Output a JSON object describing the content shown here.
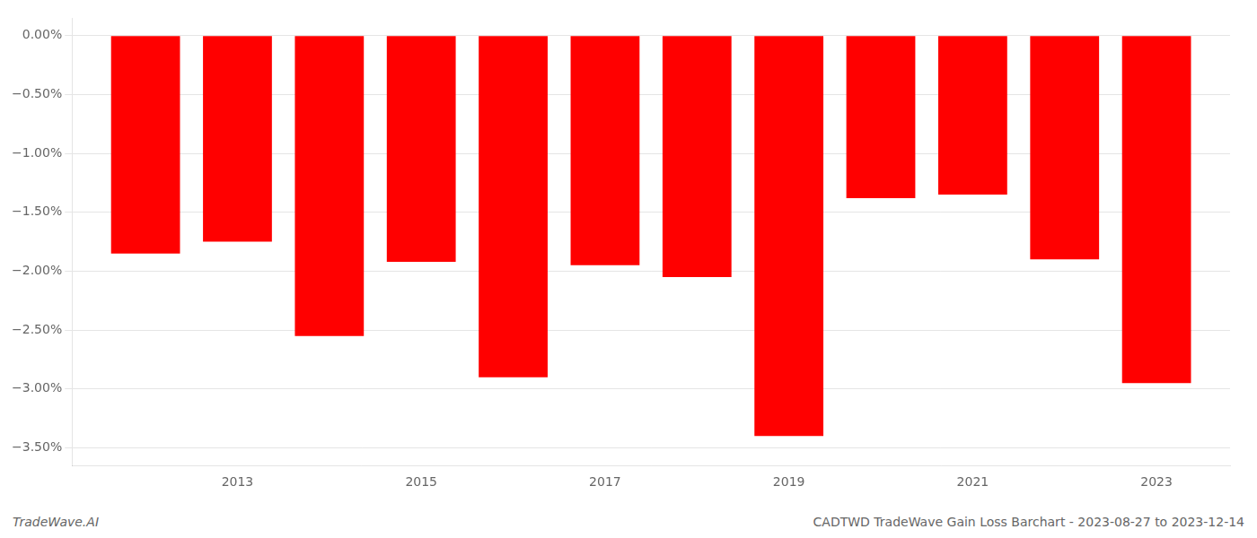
{
  "chart_data": {
    "type": "bar",
    "x": [
      2012,
      2013,
      2014,
      2015,
      2016,
      2017,
      2018,
      2019,
      2020,
      2021,
      2022,
      2023
    ],
    "values": [
      -1.85,
      -1.75,
      -2.55,
      -1.92,
      -2.9,
      -1.95,
      -2.05,
      -3.4,
      -1.38,
      -1.35,
      -1.9,
      -2.95
    ],
    "color": "#ff0000",
    "xlim": [
      2011.2,
      2023.8
    ],
    "xticks": [
      2013,
      2015,
      2017,
      2019,
      2021,
      2023
    ],
    "ylim": [
      -3.65,
      0.15
    ],
    "yticks": [
      {
        "value": 0.0,
        "label": "0.00%"
      },
      {
        "value": -0.5,
        "label": "−0.50%"
      },
      {
        "value": -1.0,
        "label": "−1.00%"
      },
      {
        "value": -1.5,
        "label": "−1.50%"
      },
      {
        "value": -2.0,
        "label": "−2.00%"
      },
      {
        "value": -2.5,
        "label": "−2.50%"
      },
      {
        "value": -3.0,
        "label": "−3.00%"
      },
      {
        "value": -3.5,
        "label": "−3.50%"
      }
    ],
    "grid": "y",
    "annotations": [
      "TradeWave.AI",
      "CADTWD TradeWave Gain Loss Barchart - 2023-08-27 to 2023-12-14"
    ]
  }
}
